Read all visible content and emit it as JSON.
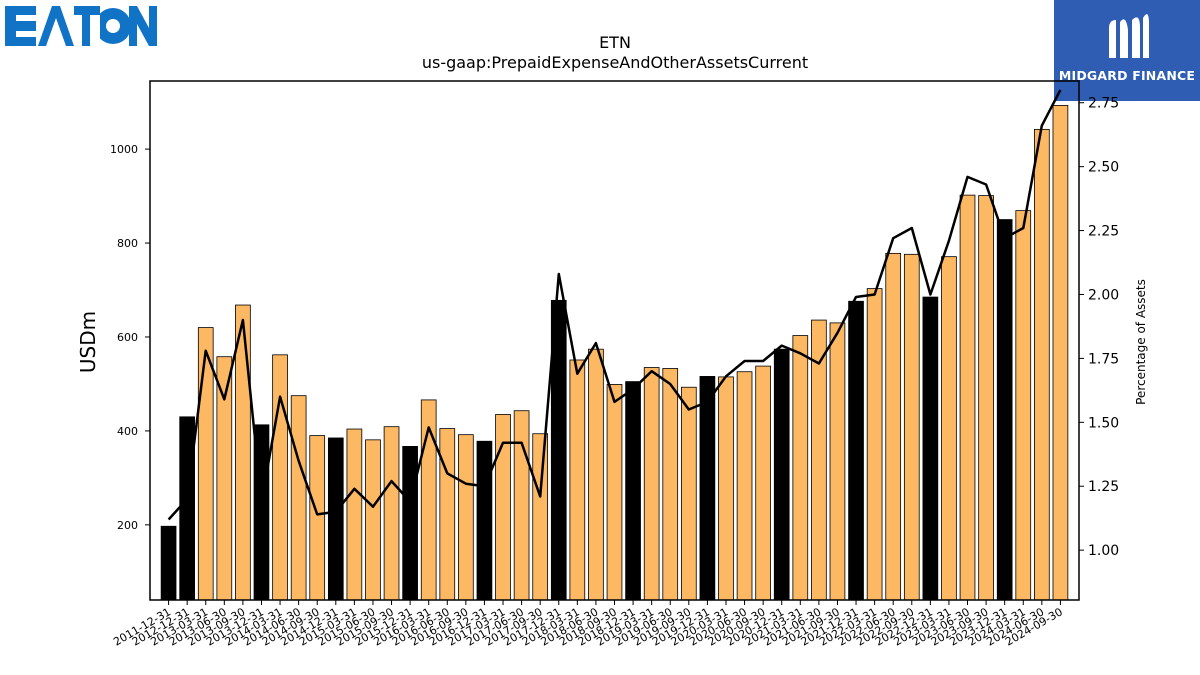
{
  "brand": {
    "company_logo_text": "EATON",
    "publisher_name": "MIDGARD FINANCE"
  },
  "colors": {
    "bar_normal": "#fdb863",
    "bar_highlight": "#000000",
    "line": "#000000",
    "logo_blue": "#1173c6",
    "publisher_bg": "#2f5db4"
  },
  "chart_data": {
    "type": "bar",
    "title": "ETN",
    "subtitle": "us-gaap:PrepaidExpenseAndOtherAssetsCurrent",
    "ylabel": "USDm",
    "y2label": "Percentage of Assets",
    "ylim": [
      40,
      1145
    ],
    "y2lim": [
      0.805,
      2.835
    ],
    "yticks": [
      200,
      400,
      600,
      800,
      1000
    ],
    "y2ticks": [
      "1.00",
      "1.25",
      "1.50",
      "1.75",
      "2.00",
      "2.25",
      "2.50",
      "2.75"
    ],
    "categories": [
      "2011-12-31",
      "2012-12-31",
      "2013-03-31",
      "2013-06-30",
      "2013-09-30",
      "2013-12-31",
      "2014-03-31",
      "2014-06-30",
      "2014-09-30",
      "2014-12-31",
      "2015-03-31",
      "2015-06-30",
      "2015-09-30",
      "2015-12-31",
      "2016-03-31",
      "2016-06-30",
      "2016-09-30",
      "2016-12-31",
      "2017-03-31",
      "2017-06-30",
      "2017-09-30",
      "2017-12-31",
      "2018-03-31",
      "2018-06-30",
      "2018-09-30",
      "2018-12-31",
      "2019-03-31",
      "2019-06-30",
      "2019-09-30",
      "2019-12-31",
      "2020-03-31",
      "2020-06-30",
      "2020-09-30",
      "2020-12-31",
      "2021-03-31",
      "2021-06-30",
      "2021-09-30",
      "2021-12-31",
      "2022-03-31",
      "2022-06-30",
      "2022-09-30",
      "2022-12-31",
      "2023-03-31",
      "2023-06-30",
      "2023-09-30",
      "2023-12-31",
      "2024-03-31",
      "2024-06-30",
      "2024-09-30"
    ],
    "xtick_labels": [
      "2011-12-31",
      "2012-12-31",
      "2013-03-31",
      "2013-06-30",
      "2013-09-30",
      "2013-12-31",
      "2014-03-31",
      "2014-06-30",
      "2014-09-30",
      "2014-12-31",
      "2015-03-31",
      "2015-06-30",
      "2015-09-30",
      "2015-12-31",
      "2016-03-31",
      "2016-06-30",
      "2016-09-30",
      "2016-12-31",
      "2017-03-31",
      "2017-06-30",
      "2017-09-30",
      "2017-12-31",
      "2018-03-31",
      "2018-06-30",
      "2018-09-30",
      "2018-12-31",
      "2019-03-31",
      "2019-06-30",
      "2019-09-30",
      "2019-12-31",
      "2020-03-31",
      "2020-06-30",
      "2020-09-30",
      "2020-12-31",
      "2021-03-31",
      "2021-06-30",
      "2021-09-30",
      "2021-12-31",
      "2022-03-31",
      "2022-06-30",
      "2022-09-30",
      "2022-12-31",
      "2023-03-31",
      "2023-06-30",
      "2023-09-30",
      "2023-12-31",
      "2024-03-31",
      "2024-06-30",
      "2024-09-30"
    ],
    "series": [
      {
        "axis": "left",
        "values": [
          197,
          430,
          620,
          558,
          668,
          413,
          562,
          475,
          390,
          385,
          404,
          381,
          409,
          367,
          466,
          405,
          392,
          378,
          435,
          443,
          394,
          678,
          551,
          574,
          499,
          505,
          535,
          533,
          493,
          516,
          515,
          526,
          538,
          574,
          603,
          636,
          630,
          676,
          703,
          778,
          776,
          685,
          771,
          902,
          901,
          850,
          869,
          1042,
          1093
        ],
        "highlight": [
          true,
          true,
          false,
          false,
          false,
          true,
          false,
          false,
          false,
          true,
          false,
          false,
          false,
          true,
          false,
          false,
          false,
          true,
          false,
          false,
          false,
          true,
          false,
          false,
          false,
          true,
          false,
          false,
          false,
          true,
          false,
          false,
          false,
          true,
          false,
          false,
          false,
          true,
          false,
          false,
          false,
          true,
          false,
          false,
          false,
          true,
          false,
          false,
          false
        ]
      },
      {
        "axis": "right",
        "values": [
          1.12,
          1.2,
          1.78,
          1.59,
          1.9,
          1.19,
          1.6,
          1.35,
          1.14,
          1.15,
          1.24,
          1.17,
          1.27,
          1.19,
          1.48,
          1.3,
          1.26,
          1.25,
          1.42,
          1.42,
          1.21,
          2.08,
          1.69,
          1.81,
          1.58,
          1.63,
          1.7,
          1.65,
          1.55,
          1.58,
          1.68,
          1.74,
          1.74,
          1.8,
          1.77,
          1.73,
          1.85,
          1.99,
          2.0,
          2.22,
          2.26,
          2.0,
          2.21,
          2.46,
          2.43,
          2.22,
          2.26,
          2.66,
          2.8
        ]
      }
    ]
  }
}
